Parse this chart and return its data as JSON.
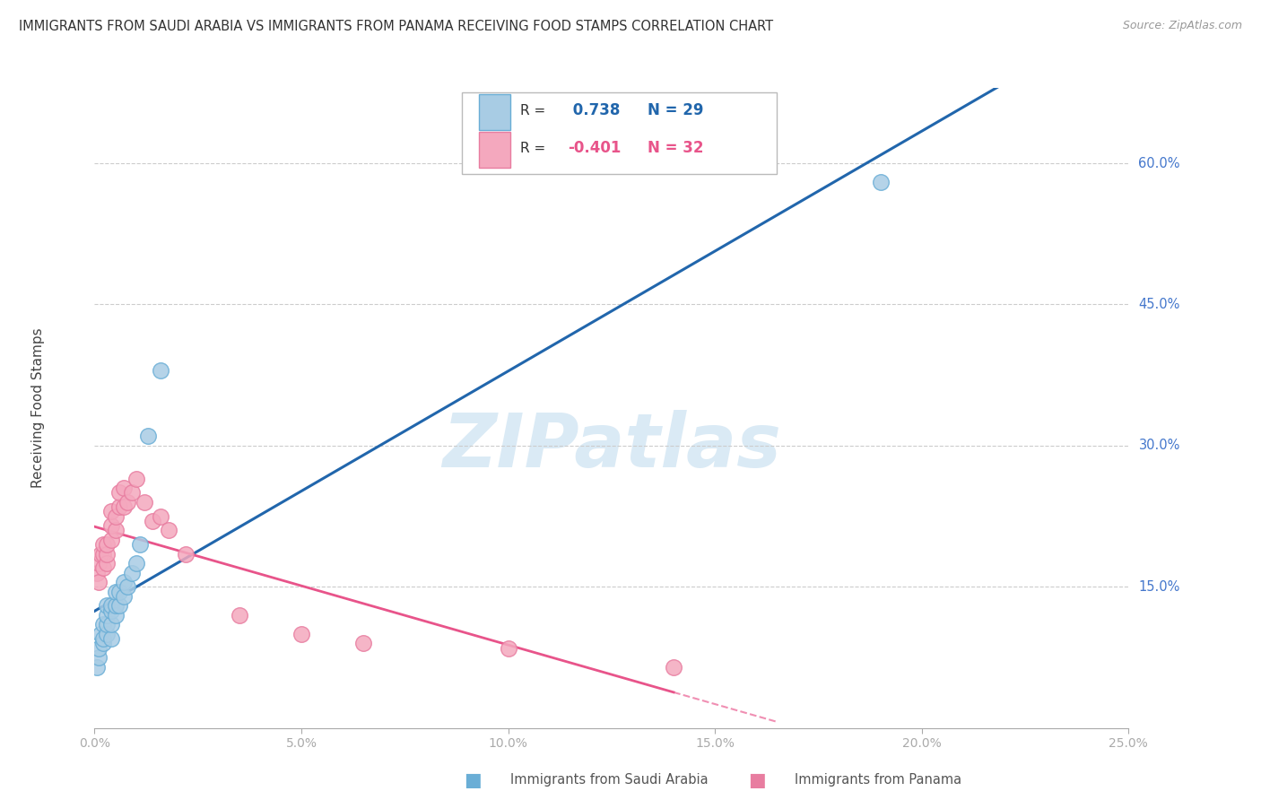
{
  "title": "IMMIGRANTS FROM SAUDI ARABIA VS IMMIGRANTS FROM PANAMA RECEIVING FOOD STAMPS CORRELATION CHART",
  "source": "Source: ZipAtlas.com",
  "ylabel": "Receiving Food Stamps",
  "legend_label1": "Immigrants from Saudi Arabia",
  "legend_label2": "Immigrants from Panama",
  "R1": 0.738,
  "N1": 29,
  "R2": -0.401,
  "N2": 32,
  "color1": "#a8cce4",
  "color2": "#f4a8be",
  "color1_edge": "#6aaed6",
  "color2_edge": "#e87da0",
  "trendline1_color": "#2166ac",
  "trendline2_color": "#e8548a",
  "watermark_color": "#daeaf5",
  "right_ytick_vals": [
    0.15,
    0.3,
    0.45,
    0.6
  ],
  "right_ytick_labels": [
    "15.0%",
    "30.0%",
    "45.0%",
    "60.0%"
  ],
  "xlim": [
    0.0,
    0.25
  ],
  "ylim": [
    0.0,
    0.68
  ],
  "saudi_x": [
    0.0005,
    0.001,
    0.001,
    0.0015,
    0.002,
    0.002,
    0.002,
    0.003,
    0.003,
    0.003,
    0.003,
    0.004,
    0.004,
    0.004,
    0.004,
    0.005,
    0.005,
    0.005,
    0.006,
    0.006,
    0.007,
    0.007,
    0.008,
    0.009,
    0.01,
    0.011,
    0.013,
    0.016,
    0.19
  ],
  "saudi_y": [
    0.065,
    0.075,
    0.085,
    0.1,
    0.09,
    0.095,
    0.11,
    0.1,
    0.11,
    0.12,
    0.13,
    0.095,
    0.11,
    0.125,
    0.13,
    0.12,
    0.13,
    0.145,
    0.13,
    0.145,
    0.14,
    0.155,
    0.15,
    0.165,
    0.175,
    0.195,
    0.31,
    0.38,
    0.58
  ],
  "panama_x": [
    0.0005,
    0.001,
    0.001,
    0.0015,
    0.002,
    0.002,
    0.002,
    0.003,
    0.003,
    0.003,
    0.004,
    0.004,
    0.004,
    0.005,
    0.005,
    0.006,
    0.006,
    0.007,
    0.007,
    0.008,
    0.009,
    0.01,
    0.012,
    0.014,
    0.016,
    0.018,
    0.022,
    0.035,
    0.05,
    0.065,
    0.1,
    0.14
  ],
  "panama_y": [
    0.165,
    0.155,
    0.175,
    0.185,
    0.17,
    0.185,
    0.195,
    0.175,
    0.185,
    0.195,
    0.2,
    0.215,
    0.23,
    0.21,
    0.225,
    0.235,
    0.25,
    0.235,
    0.255,
    0.24,
    0.25,
    0.265,
    0.24,
    0.22,
    0.225,
    0.21,
    0.185,
    0.12,
    0.1,
    0.09,
    0.085,
    0.065
  ]
}
